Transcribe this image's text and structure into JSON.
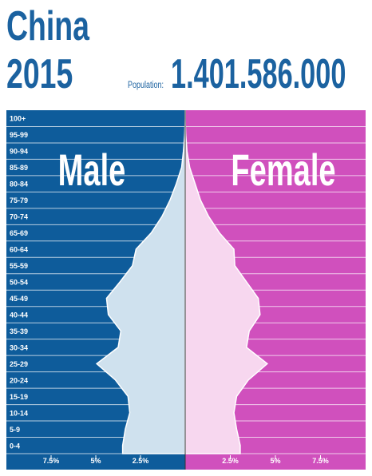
{
  "title": "China",
  "year": "2015",
  "population_label": "Population:",
  "population": "1.401.586.000",
  "chart_data": {
    "type": "population-pyramid",
    "categories": [
      "100+",
      "95-99",
      "90-94",
      "85-89",
      "80-84",
      "75-79",
      "70-74",
      "65-69",
      "60-64",
      "55-59",
      "50-54",
      "45-49",
      "40-44",
      "35-39",
      "30-34",
      "25-29",
      "20-24",
      "15-19",
      "10-14",
      "5-9",
      "0-4"
    ],
    "series": [
      {
        "name": "Male",
        "color": "#0e5c9b",
        "fill": "#cfe1ee",
        "values": [
          0,
          0.03,
          0.1,
          0.2,
          0.5,
          0.85,
          1.3,
          1.9,
          2.75,
          2.95,
          3.65,
          4.4,
          4.3,
          3.6,
          3.75,
          4.95,
          3.9,
          3.2,
          3.1,
          3.35,
          3.5
        ]
      },
      {
        "name": "Female",
        "color": "#d050bd",
        "fill": "#f7d7ef",
        "values": [
          0,
          0.03,
          0.1,
          0.25,
          0.55,
          0.85,
          1.3,
          1.9,
          2.7,
          2.75,
          3.4,
          4.05,
          4.15,
          3.55,
          3.4,
          4.55,
          3.5,
          2.85,
          2.7,
          2.85,
          3.05
        ]
      }
    ],
    "xlim": [
      0,
      10
    ],
    "xticks": [
      {
        "value": 7.5,
        "label": "7.5%"
      },
      {
        "value": 5,
        "label": "5%"
      },
      {
        "value": 2.5,
        "label": "2.5%"
      }
    ],
    "grid": true
  }
}
